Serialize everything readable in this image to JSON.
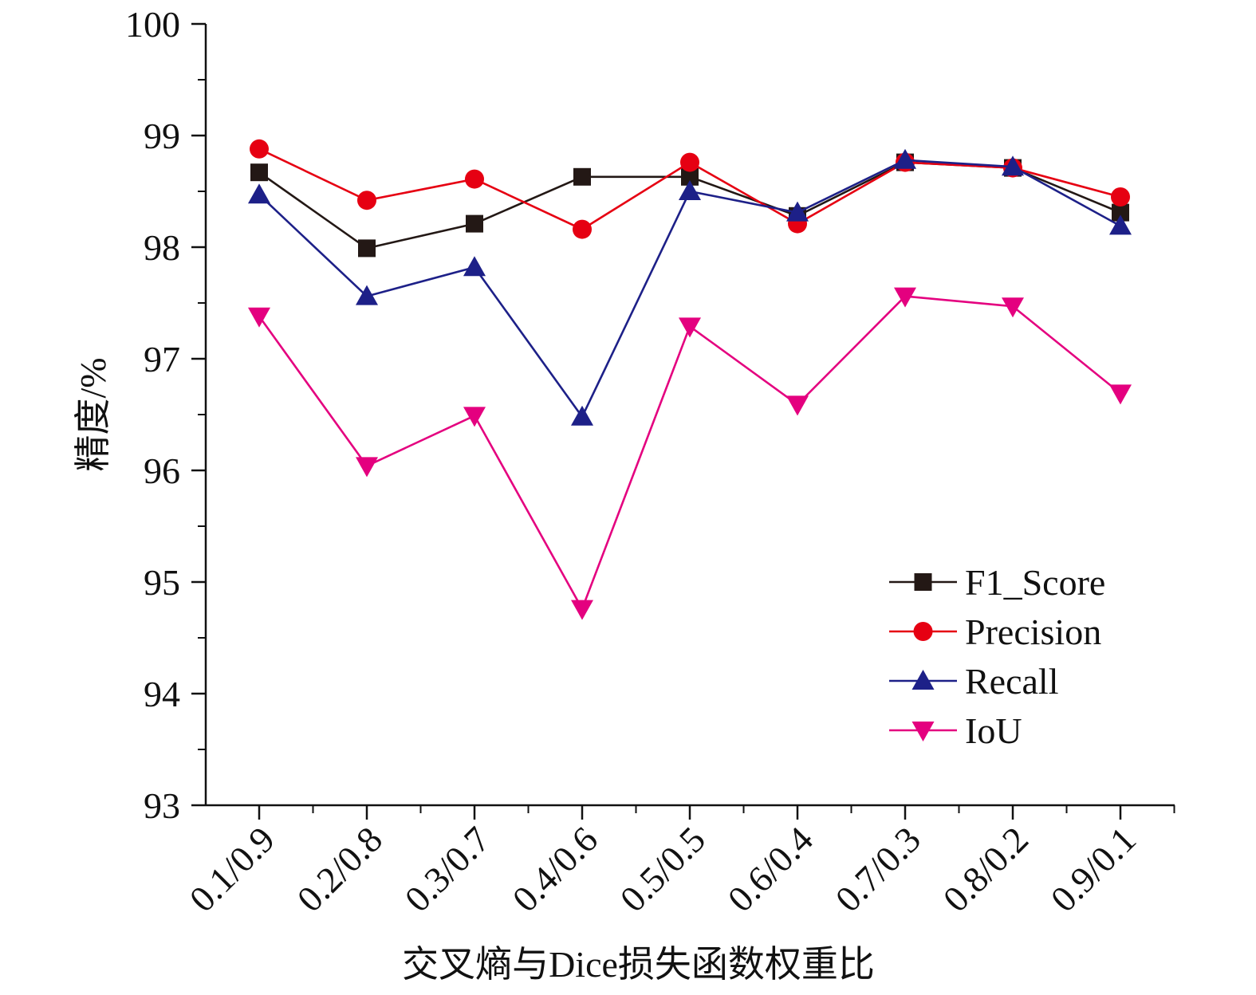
{
  "chart_data": {
    "type": "line",
    "title": "",
    "xlabel": "交叉熵与Dice损失函数权重比",
    "ylabel": "精度/%",
    "ylim": [
      93,
      100
    ],
    "yticks": [
      93,
      94,
      95,
      96,
      97,
      98,
      99,
      100
    ],
    "categories": [
      "0.1/0.9",
      "0.2/0.8",
      "0.3/0.7",
      "0.4/0.6",
      "0.5/0.5",
      "0.6/0.4",
      "0.7/0.3",
      "0.8/0.2",
      "0.9/0.1"
    ],
    "legend_position": "lower-right",
    "grid": false,
    "series": [
      {
        "name": "F1_Score",
        "color": "#231815",
        "marker": "square",
        "values": [
          98.67,
          97.99,
          98.21,
          98.63,
          98.63,
          98.28,
          98.76,
          98.71,
          98.31
        ]
      },
      {
        "name": "Precision",
        "color": "#e60012",
        "marker": "circle",
        "values": [
          98.88,
          98.42,
          98.61,
          98.16,
          98.76,
          98.21,
          98.76,
          98.71,
          98.45
        ]
      },
      {
        "name": "Recall",
        "color": "#1d2088",
        "marker": "triangle-up",
        "values": [
          98.47,
          97.56,
          97.82,
          96.48,
          98.5,
          98.31,
          98.78,
          98.72,
          98.19
        ]
      },
      {
        "name": "IoU",
        "color": "#e4007f",
        "marker": "triangle-down",
        "values": [
          97.38,
          96.04,
          96.49,
          94.76,
          97.29,
          96.59,
          97.56,
          97.47,
          96.69
        ]
      }
    ]
  }
}
